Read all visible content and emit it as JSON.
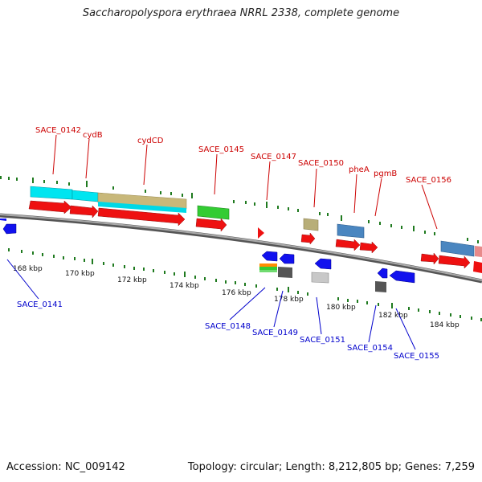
{
  "header": {
    "title": "Saccharopolyspora erythraea NRRL 2338, complete genome"
  },
  "footer": {
    "accession": "Accession: NC_009142",
    "topology": "Topology: circular; Length: 8,212,805 bp; Genes: 7,259"
  },
  "colors": {
    "forward_label": "#cc0000",
    "reverse_label": "#0000cc",
    "forward_gene": "#ee1111",
    "reverse_gene": "#1111ee",
    "tick": "#1f7a1f",
    "backbone": "#8a8a8a"
  },
  "scale": {
    "labels": [
      "168 kbp",
      "170 kbp",
      "172 kbp",
      "174 kbp",
      "176 kbp",
      "178 kbp",
      "180 kbp",
      "182 kbp",
      "184 kbp"
    ]
  },
  "forward_genes": [
    "SACE_0142",
    "cydB",
    "cydCD",
    "SACE_0145",
    "SACE_0147",
    "SACE_0150",
    "pheA",
    "pgmB",
    "SACE_0156"
  ],
  "reverse_genes": [
    "SACE_0141",
    "SACE_0148",
    "SACE_0149",
    "SACE_0151",
    "SACE_0154",
    "SACE_0155"
  ]
}
